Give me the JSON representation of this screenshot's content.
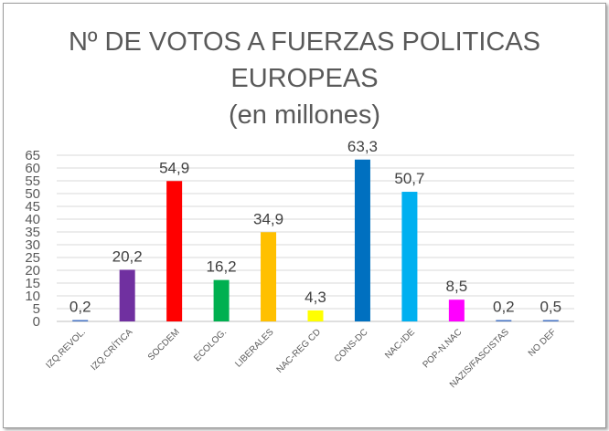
{
  "chart_data": {
    "type": "bar",
    "title_lines": [
      "Nº DE VOTOS A FUERZAS POLITICAS",
      "EUROPEAS",
      "(en millones)"
    ],
    "categories": [
      "IZQ.REVOL.",
      "IZQ.CRÍTICA",
      "SOCDEM",
      "ECOLOG.",
      "LIBERALES",
      "NAC-REG CD",
      "CONS-DC",
      "NAC-IDE",
      "POP-N.NAC",
      "NAZIS/FASCISTAS",
      "NO DEF"
    ],
    "values": [
      0.2,
      20.2,
      54.9,
      16.2,
      34.9,
      4.3,
      63.3,
      50.7,
      8.5,
      0.2,
      0.5
    ],
    "data_labels": [
      "0,2",
      "20,2",
      "54,9",
      "16,2",
      "34,9",
      "4,3",
      "63,3",
      "50,7",
      "8,5",
      "0,2",
      "0,5"
    ],
    "bar_colors": [
      "#4472c4",
      "#7030a0",
      "#ff0000",
      "#00b050",
      "#ffc000",
      "#ffff00",
      "#0070c0",
      "#00b0f0",
      "#ff00ff",
      "#4472c4",
      "#4472c4"
    ],
    "ylim": [
      0,
      65
    ],
    "yticks": [
      0,
      5,
      10,
      15,
      20,
      25,
      30,
      35,
      40,
      45,
      50,
      55,
      60,
      65
    ],
    "xlabel": "",
    "ylabel": "",
    "grid": true,
    "legend": "none"
  }
}
